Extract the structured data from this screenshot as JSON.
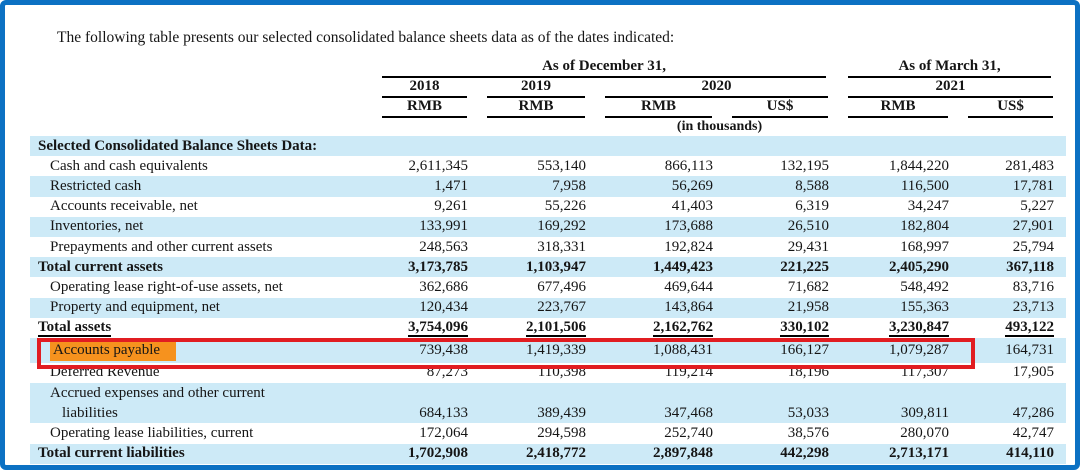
{
  "intro": "The following table presents our selected consolidated balance sheets data as of the dates indicated:",
  "colors": {
    "frame_blue": "#0c71c3",
    "row_shade": "#cdeaf7",
    "highlight_orange": "#f6921e",
    "annotation_red": "#e11d21"
  },
  "table": {
    "group_headers": [
      {
        "label": "As of December 31,"
      },
      {
        "label": "As of March 31,"
      }
    ],
    "years": [
      "2018",
      "2019",
      "2020",
      "2021"
    ],
    "currencies": [
      "RMB",
      "RMB",
      "RMB",
      "US$",
      "RMB",
      "US$"
    ],
    "units_note": "(in thousands)",
    "rows": [
      {
        "label": "Selected Consolidated Balance Sheets Data:",
        "values": [],
        "classes": "shade bold",
        "label_class": "flush"
      },
      {
        "label": "Cash and cash equivalents",
        "values": [
          "2,611,345",
          "553,140",
          "866,113",
          "132,195",
          "1,844,220",
          "281,483"
        ],
        "classes": "",
        "label_class": "indent"
      },
      {
        "label": "Restricted cash",
        "values": [
          "1,471",
          "7,958",
          "56,269",
          "8,588",
          "116,500",
          "17,781"
        ],
        "classes": "shade",
        "label_class": "indent"
      },
      {
        "label": "Accounts receivable, net",
        "values": [
          "9,261",
          "55,226",
          "41,403",
          "6,319",
          "34,247",
          "5,227"
        ],
        "classes": "",
        "label_class": "indent"
      },
      {
        "label": "Inventories, net",
        "values": [
          "133,991",
          "169,292",
          "173,688",
          "26,510",
          "182,804",
          "27,901"
        ],
        "classes": "shade",
        "label_class": "indent"
      },
      {
        "label": "Prepayments and other current assets",
        "values": [
          "248,563",
          "318,331",
          "192,824",
          "29,431",
          "168,997",
          "25,794"
        ],
        "classes": "",
        "label_class": "indent"
      },
      {
        "label": "Total current assets",
        "values": [
          "3,173,785",
          "1,103,947",
          "1,449,423",
          "221,225",
          "2,405,290",
          "367,118"
        ],
        "classes": "shade bold",
        "label_class": "flush"
      },
      {
        "label": "Operating lease right-of-use assets, net",
        "values": [
          "362,686",
          "677,496",
          "469,644",
          "71,682",
          "548,492",
          "83,716"
        ],
        "classes": "",
        "label_class": "indent"
      },
      {
        "label": "Property and equipment, net",
        "values": [
          "120,434",
          "223,767",
          "143,864",
          "21,958",
          "155,363",
          "23,713"
        ],
        "classes": "shade",
        "label_class": "indent"
      },
      {
        "label": "Total assets",
        "values": [
          "3,754,096",
          "2,101,506",
          "2,162,762",
          "330,102",
          "3,230,847",
          "493,122"
        ],
        "classes": "bold",
        "label_class": "flush",
        "underline": true
      },
      {
        "label": "Accounts payable",
        "values": [
          "739,438",
          "1,419,339",
          "1,088,431",
          "166,127",
          "1,079,287",
          "164,731"
        ],
        "classes": "shade ap",
        "label_class": "indent",
        "highlight": true
      },
      {
        "label": "Deferred Revenue",
        "values": [
          "87,273",
          "110,398",
          "119,214",
          "18,196",
          "117,307",
          "17,905"
        ],
        "classes": "",
        "label_class": "indent"
      },
      {
        "label": "Accrued expenses and other current",
        "values": [],
        "classes": "shade",
        "label_class": "indent"
      },
      {
        "label": "liabilities",
        "values": [
          "684,133",
          "389,439",
          "347,468",
          "53,033",
          "309,811",
          "47,286"
        ],
        "classes": "shade",
        "label_class": "indent2"
      },
      {
        "label": "Operating lease liabilities, current",
        "values": [
          "172,064",
          "294,598",
          "252,740",
          "38,576",
          "280,070",
          "42,747"
        ],
        "classes": "",
        "label_class": "indent"
      },
      {
        "label": "Total current liabilities",
        "values": [
          "1,702,908",
          "2,418,772",
          "2,897,848",
          "442,298",
          "2,713,171",
          "414,110"
        ],
        "classes": "shade bold",
        "label_class": "flush"
      }
    ]
  }
}
